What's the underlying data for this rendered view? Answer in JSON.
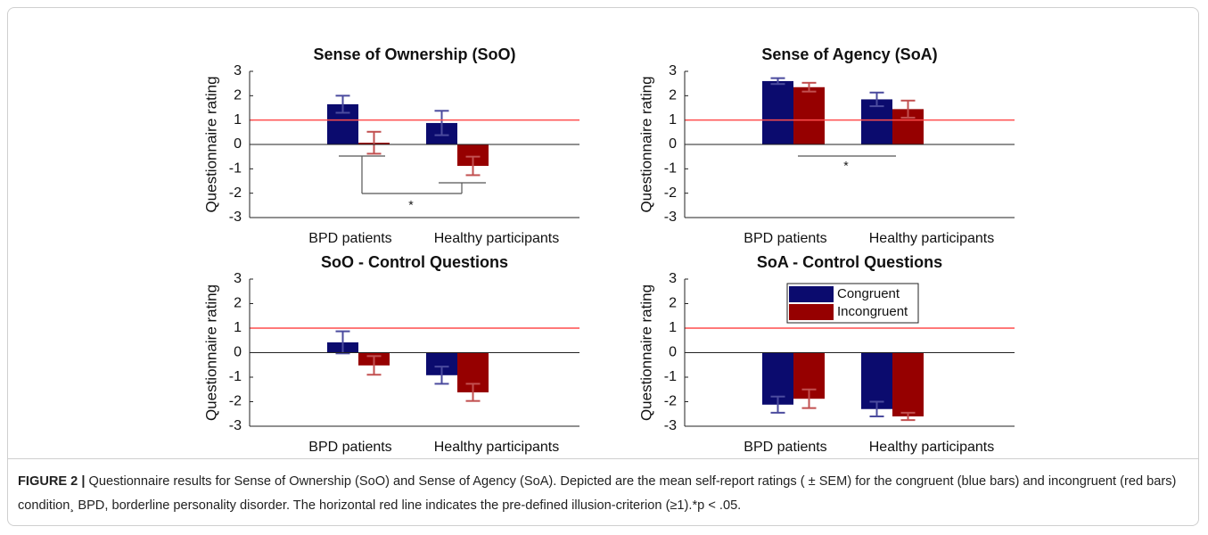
{
  "chart_data": [
    {
      "type": "bar",
      "title": "Sense of Ownership (SoO)",
      "ylabel": "Questionnaire rating",
      "categories": [
        "BPD patients",
        "Healthy participants"
      ],
      "series": [
        {
          "color": "#0b0b6e",
          "error_color": "#4b4b9e",
          "values": [
            1.65,
            0.88
          ],
          "errors": [
            0.35,
            0.5
          ]
        },
        {
          "color": "#960000",
          "error_color": "#c25050",
          "values": [
            0.07,
            -0.88
          ],
          "errors": [
            0.45,
            0.38
          ]
        }
      ],
      "ylim": [
        -3,
        3
      ],
      "yticks": [
        -3,
        -2,
        -1,
        0,
        1,
        2,
        3
      ],
      "reference_line": 1,
      "reference_color": "#ff4d4d",
      "annotation": "*"
    },
    {
      "type": "bar",
      "title": "Sense of Agency (SoA)",
      "ylabel": "Questionnaire rating",
      "categories": [
        "BPD patients",
        "Healthy participants"
      ],
      "series": [
        {
          "color": "#0b0b6e",
          "error_color": "#4b4b9e",
          "values": [
            2.6,
            1.85
          ],
          "errors": [
            0.12,
            0.28
          ]
        },
        {
          "color": "#960000",
          "error_color": "#c25050",
          "values": [
            2.35,
            1.45
          ],
          "errors": [
            0.18,
            0.35
          ]
        }
      ],
      "ylim": [
        -3,
        3
      ],
      "yticks": [
        -3,
        -2,
        -1,
        0,
        1,
        2,
        3
      ],
      "reference_line": 1,
      "reference_color": "#ff4d4d",
      "annotation": "*"
    },
    {
      "type": "bar",
      "title": "SoO - Control Questions",
      "ylabel": "Questionnaire rating",
      "categories": [
        "BPD patients",
        "Healthy participants"
      ],
      "series": [
        {
          "color": "#0b0b6e",
          "error_color": "#4b4b9e",
          "values": [
            0.42,
            -0.92
          ],
          "errors": [
            0.45,
            0.35
          ]
        },
        {
          "color": "#960000",
          "error_color": "#c25050",
          "values": [
            -0.52,
            -1.62
          ],
          "errors": [
            0.38,
            0.35
          ]
        }
      ],
      "ylim": [
        -3,
        3
      ],
      "yticks": [
        -3,
        -2,
        -1,
        0,
        1,
        2,
        3
      ],
      "reference_line": 1,
      "reference_color": "#ff4d4d"
    },
    {
      "type": "bar",
      "title": "SoA - Control Questions",
      "ylabel": "Questionnaire rating",
      "categories": [
        "BPD patients",
        "Healthy participants"
      ],
      "series": [
        {
          "name": "Congruent",
          "color": "#0b0b6e",
          "error_color": "#4b4b9e",
          "values": [
            -2.12,
            -2.3
          ],
          "errors": [
            0.33,
            0.3
          ]
        },
        {
          "name": "Incongruent",
          "color": "#960000",
          "error_color": "#c25050",
          "values": [
            -1.88,
            -2.6
          ],
          "errors": [
            0.38,
            0.15
          ]
        }
      ],
      "ylim": [
        -3,
        3
      ],
      "yticks": [
        -3,
        -2,
        -1,
        0,
        1,
        2,
        3
      ],
      "reference_line": 1,
      "reference_color": "#ff4d4d",
      "legend": "upper center"
    }
  ],
  "caption": {
    "label": "FIGURE 2 |",
    "text": "Questionnaire results for Sense of Ownership (SoO) and Sense of Agency (SoA). Depicted are the mean self-report ratings ( ± SEM) for the congruent (blue bars) and incongruent (red bars) condition¸ BPD, borderline personality disorder. The horizontal red line indicates the pre-defined illusion-criterion (≥1).*p < .05."
  }
}
